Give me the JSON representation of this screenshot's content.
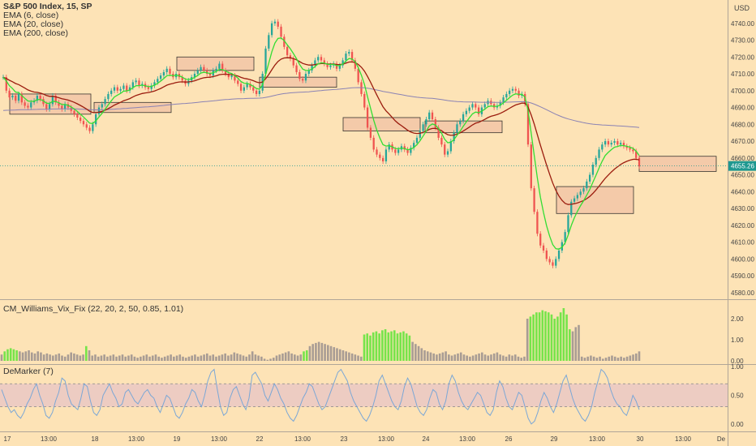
{
  "header": {
    "title": "S&P 500 Index, 15, SP",
    "indicators": [
      "EMA (6, close)",
      "EMA (20, close)",
      "EMA (200, close)"
    ],
    "currency": "USD"
  },
  "panes": {
    "vix_label": "CM_Williams_Vix_Fix (22, 20, 2, 50, 0.85, 1.01)",
    "demarker_label": "DeMarker (7)"
  },
  "colors": {
    "background": "#fde3b6",
    "up_candle": "#26a69a",
    "down_candle": "#ef5350",
    "ema6": "#33dd33",
    "ema20": "#9b1c0e",
    "ema200": "#8a82b4",
    "zone_fill": "#f4c8a8",
    "vix_green": "#76e44a",
    "vix_gray": "#a89c94",
    "demarker_line": "#7ba7d6",
    "demarker_band": "#e8c6c6",
    "price_tag": "#1e9890"
  },
  "chart_data": [
    {
      "type": "candlestick",
      "title": "S&P 500 Index, 15, SP",
      "ylim": [
        4578,
        4750
      ],
      "y_ticks": [
        "4740.00",
        "4730.00",
        "4720.00",
        "4710.00",
        "4700.00",
        "4690.00",
        "4680.00",
        "4670.00",
        "4660.00",
        "4650.00",
        "4640.00",
        "4630.00",
        "4620.00",
        "4610.00",
        "4600.00",
        "4590.00",
        "4580.00"
      ],
      "current_price": "4655.26",
      "x_ticks": [
        "17",
        "13:00",
        "18",
        "13:00",
        "19",
        "13:00",
        "22",
        "13:00",
        "23",
        "13:00",
        "24",
        "13:00",
        "26",
        "29",
        "13:00",
        "30",
        "13:00",
        "De"
      ],
      "close_series": [
        4708,
        4700,
        4696,
        4697,
        4694,
        4698,
        4693,
        4691,
        4690,
        4693,
        4694,
        4697,
        4695,
        4692,
        4689,
        4692,
        4697,
        4693,
        4691,
        4689,
        4692,
        4690,
        4688,
        4686,
        4684,
        4682,
        4680,
        4678,
        4676,
        4680,
        4686,
        4690,
        4692,
        4695,
        4698,
        4700,
        4702,
        4700,
        4701,
        4703,
        4700,
        4702,
        4705,
        4706,
        4703,
        4704,
        4702,
        4701,
        4703,
        4705,
        4707,
        4709,
        4711,
        4713,
        4710,
        4708,
        4710,
        4708,
        4706,
        4704,
        4706,
        4708,
        4710,
        4712,
        4714,
        4712,
        4710,
        4709,
        4712,
        4713,
        4716,
        4712,
        4710,
        4708,
        4709,
        4706,
        4704,
        4700,
        4702,
        4704,
        4702,
        4700,
        4698,
        4700,
        4710,
        4725,
        4733,
        4740,
        4741,
        4738,
        4732,
        4726,
        4721,
        4719,
        4715,
        4711,
        4707,
        4706,
        4710,
        4712,
        4715,
        4718,
        4720,
        4718,
        4716,
        4714,
        4715,
        4716,
        4713,
        4715,
        4718,
        4722,
        4723,
        4718,
        4713,
        4705,
        4698,
        4690,
        4678,
        4672,
        4665,
        4662,
        4660,
        4658,
        4665,
        4668,
        4665,
        4663,
        4665,
        4667,
        4665,
        4663,
        4666,
        4669,
        4672,
        4676,
        4680,
        4683,
        4687,
        4683,
        4678,
        4672,
        4668,
        4662,
        4664,
        4670,
        4675,
        4680,
        4682,
        4686,
        4688,
        4690,
        4692,
        4690,
        4686,
        4690,
        4692,
        4694,
        4692,
        4690,
        4691,
        4693,
        4696,
        4698,
        4700,
        4701,
        4700,
        4697,
        4698,
        4692,
        4668,
        4642,
        4628,
        4615,
        4608,
        4605,
        4600,
        4598,
        4596,
        4600,
        4605,
        4610,
        4616,
        4626,
        4634,
        4636,
        4638,
        4640,
        4642,
        4646,
        4650,
        4656,
        4660,
        4665,
        4668,
        4670,
        4668,
        4669,
        4670,
        4668,
        4669,
        4667,
        4666,
        4665,
        4664,
        4660,
        4655
      ],
      "zones": [
        {
          "x_from": "17",
          "y_top": 4698,
          "y_bottom": 4686
        },
        {
          "x_from": "18",
          "y_top": 4693,
          "y_bottom": 4687
        },
        {
          "x_from": "19",
          "y_top": 4720,
          "y_bottom": 4712
        },
        {
          "x_from": "22",
          "y_top": 4708,
          "y_bottom": 4702
        },
        {
          "x_from": "23",
          "y_top": 4684,
          "y_bottom": 4676
        },
        {
          "x_from": "24",
          "y_top": 4682,
          "y_bottom": 4675
        },
        {
          "x_from": "29",
          "y_top": 4643,
          "y_bottom": 4627
        },
        {
          "x_from": "30",
          "y_top": 4661,
          "y_bottom": 4652
        }
      ]
    },
    {
      "type": "bar",
      "title": "CM_Williams_Vix_Fix (22, 20, 2, 50, 0.85, 1.01)",
      "ylim": [
        0,
        2.5
      ],
      "y_ticks": [
        "2.00",
        "1.00",
        "0.00"
      ],
      "values": [
        0.3,
        0.45,
        0.55,
        0.6,
        0.55,
        0.5,
        0.45,
        0.4,
        0.45,
        0.5,
        0.4,
        0.35,
        0.45,
        0.4,
        0.3,
        0.35,
        0.3,
        0.25,
        0.3,
        0.35,
        0.25,
        0.2,
        0.3,
        0.4,
        0.35,
        0.3,
        0.25,
        0.3,
        0.7,
        0.5,
        0.25,
        0.3,
        0.2,
        0.25,
        0.3,
        0.2,
        0.25,
        0.3,
        0.2,
        0.25,
        0.3,
        0.2,
        0.25,
        0.3,
        0.2,
        0.15,
        0.2,
        0.25,
        0.3,
        0.2,
        0.25,
        0.3,
        0.2,
        0.15,
        0.2,
        0.25,
        0.3,
        0.2,
        0.25,
        0.3,
        0.2,
        0.15,
        0.2,
        0.25,
        0.3,
        0.2,
        0.25,
        0.3,
        0.35,
        0.25,
        0.3,
        0.2,
        0.25,
        0.3,
        0.35,
        0.25,
        0.3,
        0.4,
        0.35,
        0.3,
        0.25,
        0.2,
        0.3,
        0.45,
        0.3,
        0.25,
        0.2,
        0.1,
        0.05,
        0.1,
        0.15,
        0.25,
        0.3,
        0.35,
        0.4,
        0.45,
        0.35,
        0.3,
        0.25,
        0.3,
        0.45,
        0.5,
        0.7,
        0.8,
        0.85,
        0.9,
        0.85,
        0.8,
        0.75,
        0.7,
        0.65,
        0.6,
        0.55,
        0.5,
        0.45,
        0.4,
        0.35,
        0.3,
        0.25,
        0.2,
        1.25,
        1.3,
        1.2,
        1.35,
        1.4,
        1.3,
        1.45,
        1.5,
        1.35,
        1.4,
        1.45,
        1.3,
        1.35,
        1.4,
        1.3,
        1.2,
        0.9,
        0.8,
        0.7,
        0.6,
        0.5,
        0.45,
        0.4,
        0.35,
        0.3,
        0.35,
        0.4,
        0.45,
        0.3,
        0.25,
        0.3,
        0.35,
        0.4,
        0.3,
        0.25,
        0.2,
        0.25,
        0.3,
        0.35,
        0.4,
        0.3,
        0.25,
        0.3,
        0.35,
        0.4,
        0.3,
        0.25,
        0.2,
        0.3,
        0.25,
        0.3,
        0.2,
        0.15,
        0.2,
        2.0,
        2.1,
        2.2,
        2.3,
        2.3,
        2.4,
        2.35,
        2.3,
        2.2,
        2.0,
        2.1,
        2.3,
        2.5,
        2.2,
        1.5,
        1.4,
        1.6,
        1.7,
        0.2,
        0.15,
        0.2,
        0.25,
        0.2,
        0.15,
        0.2,
        0.1,
        0.15,
        0.2,
        0.25,
        0.2,
        0.15,
        0.2,
        0.15,
        0.2,
        0.25,
        0.3,
        0.35,
        0.45
      ],
      "green": [
        false,
        true,
        true,
        true,
        true,
        true,
        false,
        false,
        false,
        false,
        false,
        false,
        false,
        false,
        false,
        false,
        false,
        false,
        false,
        false,
        false,
        false,
        false,
        false,
        false,
        false,
        false,
        false,
        true,
        false,
        false,
        false,
        false,
        false,
        false,
        false,
        false,
        false,
        false,
        false,
        false,
        false,
        false,
        false,
        false,
        false,
        false,
        false,
        false,
        false,
        false,
        false,
        false,
        false,
        false,
        false,
        false,
        false,
        false,
        false,
        false,
        false,
        false,
        false,
        false,
        false,
        false,
        false,
        false,
        false,
        false,
        false,
        false,
        false,
        false,
        false,
        false,
        false,
        false,
        false,
        false,
        false,
        false,
        false,
        false,
        false,
        false,
        false,
        false,
        false,
        false,
        false,
        false,
        false,
        false,
        false,
        false,
        false,
        false,
        false,
        true,
        true,
        false,
        false,
        false,
        false,
        false,
        false,
        false,
        false,
        false,
        false,
        false,
        false,
        false,
        false,
        false,
        false,
        false,
        false,
        true,
        true,
        true,
        true,
        true,
        true,
        true,
        true,
        true,
        true,
        true,
        true,
        true,
        true,
        true,
        true,
        false,
        false,
        false,
        false,
        false,
        false,
        false,
        false,
        false,
        false,
        false,
        false,
        false,
        false,
        false,
        false,
        false,
        false,
        false,
        false,
        false,
        false,
        false,
        false,
        false,
        false,
        false,
        false,
        false,
        false,
        false,
        false,
        false,
        false,
        false,
        false,
        false,
        false,
        false,
        true,
        true,
        true,
        true,
        true,
        true,
        true,
        true,
        true,
        true,
        true,
        true,
        true,
        true,
        false,
        false,
        false,
        false,
        false,
        false,
        false,
        false,
        false,
        false,
        false,
        false,
        false,
        false,
        false,
        false,
        false,
        false,
        false,
        false,
        false,
        false,
        false,
        true,
        true
      ]
    },
    {
      "type": "line",
      "title": "DeMarker (7)",
      "ylim": [
        -0.1,
        1.0
      ],
      "y_ticks": [
        "1.00",
        "0.50",
        "0.00"
      ],
      "band": [
        0.3,
        0.7
      ],
      "values": [
        0.6,
        0.45,
        0.3,
        0.2,
        0.25,
        0.15,
        0.1,
        0.2,
        0.35,
        0.45,
        0.6,
        0.7,
        0.5,
        0.35,
        0.15,
        0.1,
        0.2,
        0.4,
        0.55,
        0.8,
        0.75,
        0.5,
        0.35,
        0.3,
        0.25,
        0.45,
        0.7,
        0.65,
        0.4,
        0.2,
        0.15,
        0.25,
        0.5,
        0.6,
        0.7,
        0.55,
        0.45,
        0.3,
        0.35,
        0.55,
        0.6,
        0.5,
        0.4,
        0.35,
        0.45,
        0.55,
        0.6,
        0.5,
        0.45,
        0.3,
        0.2,
        0.35,
        0.5,
        0.45,
        0.3,
        0.15,
        0.1,
        0.2,
        0.35,
        0.45,
        0.6,
        0.55,
        0.4,
        0.3,
        0.5,
        0.75,
        0.9,
        0.95,
        0.6,
        0.3,
        0.15,
        0.2,
        0.45,
        0.6,
        0.65,
        0.5,
        0.35,
        0.25,
        0.45,
        0.85,
        0.9,
        0.8,
        0.7,
        0.5,
        0.4,
        0.55,
        0.7,
        0.6,
        0.45,
        0.35,
        0.2,
        0.1,
        0.05,
        0.15,
        0.3,
        0.45,
        0.55,
        0.7,
        0.65,
        0.5,
        0.35,
        0.25,
        0.3,
        0.45,
        0.6,
        0.75,
        0.9,
        0.95,
        0.85,
        0.75,
        0.55,
        0.4,
        0.3,
        0.2,
        0.1,
        0.05,
        0.15,
        0.3,
        0.5,
        0.75,
        0.85,
        0.7,
        0.55,
        0.4,
        0.3,
        0.25,
        0.4,
        0.65,
        0.8,
        0.7,
        0.5,
        0.3,
        0.2,
        0.15,
        0.25,
        0.45,
        0.6,
        0.55,
        0.35,
        0.25,
        0.4,
        0.7,
        0.85,
        0.75,
        0.55,
        0.4,
        0.3,
        0.25,
        0.35,
        0.45,
        0.55,
        0.5,
        0.35,
        0.2,
        0.15,
        0.25,
        0.55,
        0.75,
        0.65,
        0.45,
        0.3,
        0.25,
        0.4,
        0.55,
        0.5,
        0.3,
        0.1,
        0.0,
        0.05,
        0.2,
        0.4,
        0.55,
        0.45,
        0.3,
        0.2,
        0.35,
        0.55,
        0.75,
        0.85,
        0.65,
        0.45,
        0.3,
        0.2,
        0.1,
        0.05,
        0.15,
        0.3,
        0.55,
        0.75,
        0.95,
        0.9,
        0.8,
        0.6,
        0.45,
        0.35,
        0.3,
        0.2,
        0.15,
        0.3,
        0.5,
        0.4,
        0.25
      ]
    }
  ]
}
